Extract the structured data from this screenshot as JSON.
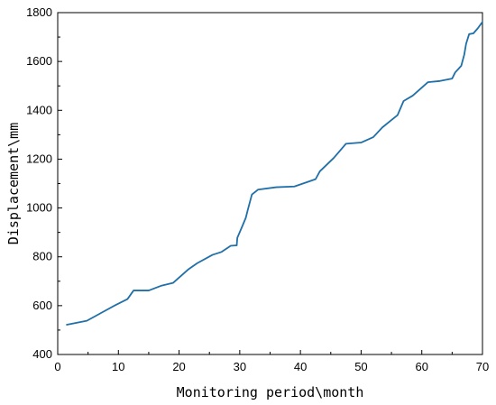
{
  "chart_data": {
    "type": "line",
    "xlabel": "Monitoring period\\month",
    "ylabel": "Displacement\\mm",
    "xlim": [
      0,
      70
    ],
    "ylim": [
      400,
      1800
    ],
    "xticks": [
      0,
      10,
      20,
      30,
      40,
      50,
      60,
      70
    ],
    "yticks": [
      400,
      600,
      800,
      1000,
      1200,
      1400,
      1600,
      1800
    ],
    "grid": false,
    "legend": "none",
    "color": "#1f6fa8",
    "series": [
      {
        "x": [
          1.5,
          4.8,
          7.0,
          9.5,
          11.5,
          12.5,
          15.0,
          17.0,
          19.0,
          21.5,
          23.0,
          25.5,
          27.0,
          28.5,
          29.5,
          29.6,
          30.5,
          31.0,
          31.3,
          32.0,
          33.0,
          36.0,
          39.0,
          41.0,
          42.5,
          43.2,
          45.5,
          47.5,
          50.0,
          52.0,
          53.5,
          55.0,
          56.0,
          57.0,
          58.5,
          61.0,
          63.0,
          65.0,
          65.5,
          66.5,
          67.0,
          67.3,
          67.8,
          68.5,
          69.2,
          70.0
        ],
        "y": [
          522,
          538,
          568,
          602,
          627,
          662,
          662,
          681,
          693,
          748,
          774,
          808,
          820,
          845,
          847,
          878,
          930,
          960,
          990,
          1055,
          1075,
          1085,
          1088,
          1105,
          1118,
          1150,
          1205,
          1263,
          1268,
          1290,
          1330,
          1360,
          1380,
          1438,
          1460,
          1515,
          1520,
          1530,
          1555,
          1582,
          1628,
          1672,
          1712,
          1715,
          1735,
          1762
        ]
      }
    ]
  }
}
